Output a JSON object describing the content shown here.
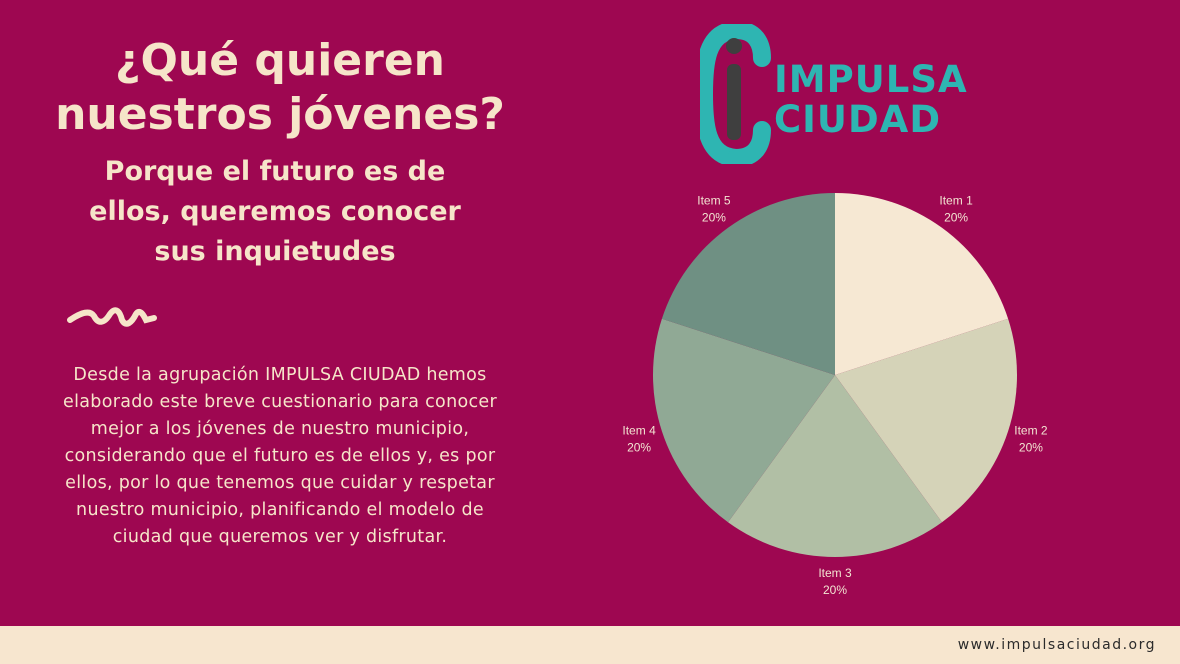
{
  "headline": "¿Qué quieren nuestros jóvenes?",
  "subheadline": "Porque el futuro es de ellos, queremos conocer sus inquietudes",
  "body": "Desde la agrupación IMPULSA CIUDAD hemos elaborado este breve cuestionario para conocer mejor a los jóvenes de nuestro municipio, considerando que el futuro es de ellos y, es por ellos, por lo que tenemos que cuidar y respetar nuestro municipio, planificando el modelo de ciudad que queremos ver y disfrutar.",
  "logo": {
    "line1": "IMPULSA",
    "line2": "CIUDAD",
    "color": "#2eb5b2"
  },
  "footer": {
    "url": "www.impulsaciudad.org"
  },
  "colors": {
    "background": "#9e0751",
    "text": "#f6e5c9",
    "footer": "#f7e6cf"
  },
  "chart_data": {
    "type": "pie",
    "categories": [
      "Item 1",
      "Item 2",
      "Item 3",
      "Item 4",
      "Item 5"
    ],
    "values": [
      20,
      20,
      20,
      20,
      20
    ],
    "value_labels": [
      "20%",
      "20%",
      "20%",
      "20%",
      "20%"
    ],
    "colors": [
      "#f6e8d3",
      "#d5d3b8",
      "#b1bfa5",
      "#90a995",
      "#6f9083"
    ]
  }
}
